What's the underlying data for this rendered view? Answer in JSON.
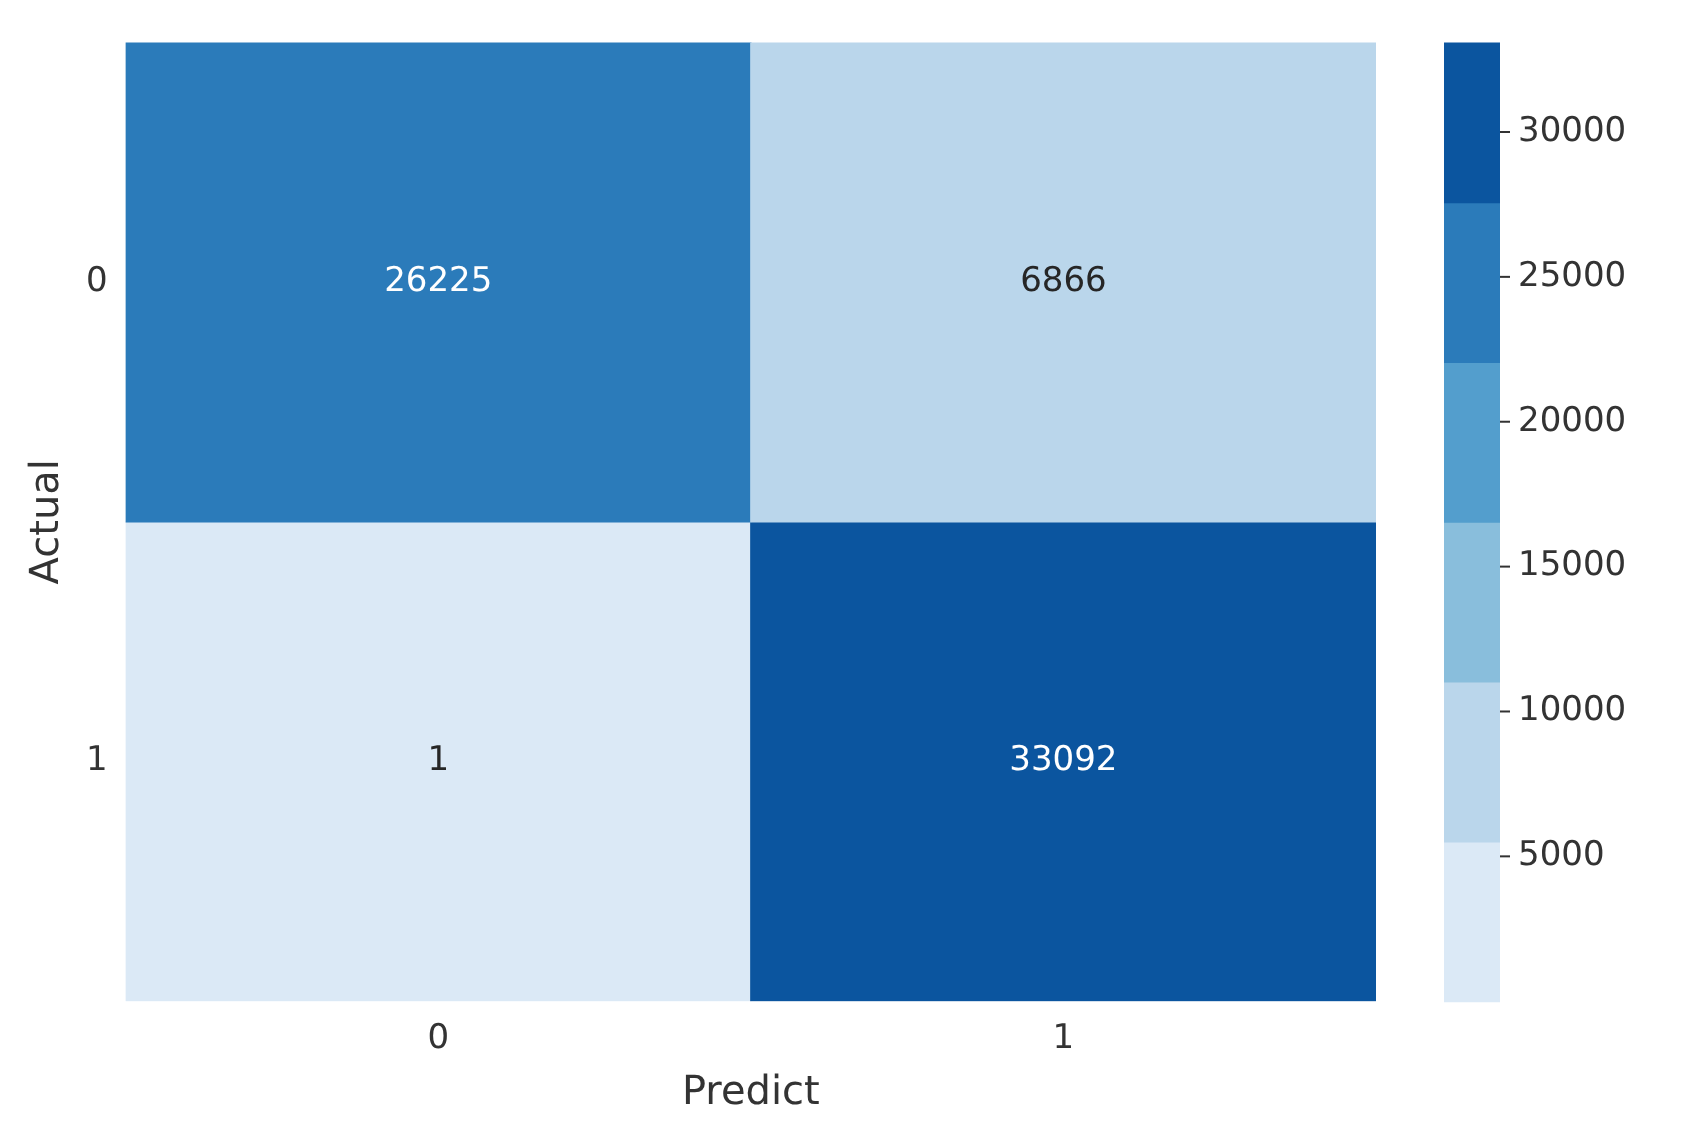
{
  "chart_data": {
    "type": "heatmap",
    "xlabel": "Predict",
    "ylabel": "Actual",
    "categories": [
      "0",
      "1"
    ],
    "y_categories": [
      "0",
      "1"
    ],
    "cells": [
      [
        26225,
        6866
      ],
      [
        1,
        33092
      ]
    ],
    "clim": [
      1,
      33092
    ],
    "cticks": [
      5000,
      10000,
      15000,
      20000,
      25000,
      30000
    ],
    "data_labels": true
  }
}
